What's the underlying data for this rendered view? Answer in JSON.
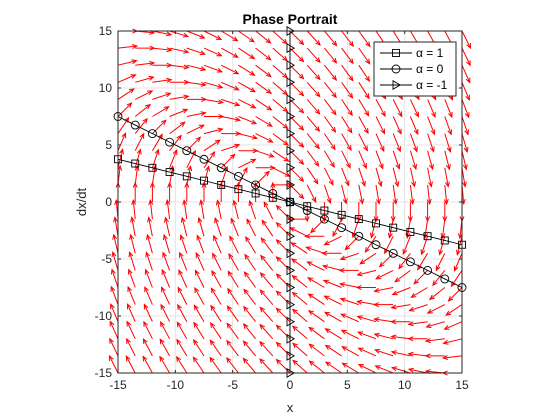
{
  "chart_data": {
    "type": "quiver_line",
    "title": "Phase Portrait",
    "xlabel": "x",
    "ylabel": "dx/dt",
    "xlim": [
      -15,
      15
    ],
    "ylim": [
      -15,
      15
    ],
    "x_ticks": [
      -15,
      -10,
      -5,
      0,
      5,
      10,
      15
    ],
    "y_ticks": [
      -15,
      -10,
      -5,
      0,
      5,
      10,
      15
    ],
    "x_tick_labels": [
      "-15",
      "-10",
      "-5",
      "0",
      "5",
      "10",
      "15"
    ],
    "y_tick_labels": [
      "-15",
      "-10",
      "-5",
      "0",
      "5",
      "10",
      "15"
    ],
    "grid": true,
    "legend_position": "top-right",
    "vector_field": {
      "color": "#ff0000",
      "grid_x": [
        -15,
        -13.5,
        -12,
        -10.5,
        -9,
        -7.5,
        -6,
        -4.5,
        -3,
        -1.5,
        0,
        1.5,
        3,
        4.5,
        6,
        7.5,
        9,
        10.5,
        12,
        13.5,
        15
      ],
      "grid_y": [
        -15,
        -13.5,
        -12,
        -10.5,
        -9,
        -7.5,
        -6,
        -4.5,
        -3,
        -1.5,
        0,
        1.5,
        3,
        4.5,
        6,
        7.5,
        9,
        10.5,
        12,
        13.5,
        15
      ]
    },
    "series": [
      {
        "name": "α = 1",
        "marker": "square",
        "x": [
          -15,
          -13.5,
          -12,
          -10.5,
          -9,
          -7.5,
          -6,
          -4.5,
          -3,
          -1.5,
          0,
          1.5,
          3,
          4.5,
          6,
          7.5,
          9,
          10.5,
          12,
          13.5,
          15
        ],
        "y": [
          3.75,
          3.375,
          3.0,
          2.625,
          2.25,
          1.875,
          1.5,
          1.125,
          0.75,
          0.375,
          0,
          -0.375,
          -0.75,
          -1.125,
          -1.5,
          -1.875,
          -2.25,
          -2.625,
          -3.0,
          -3.375,
          -3.75
        ]
      },
      {
        "name": "α = 0",
        "marker": "circle",
        "x": [
          -15,
          -13.5,
          -12,
          -10.5,
          -9,
          -7.5,
          -6,
          -4.5,
          -3,
          -1.5,
          0,
          1.5,
          3,
          4.5,
          6,
          7.5,
          9,
          10.5,
          12,
          13.5,
          15
        ],
        "y": [
          7.5,
          6.75,
          6.0,
          5.25,
          4.5,
          3.75,
          3.0,
          2.25,
          1.5,
          0.75,
          0,
          -0.75,
          -1.5,
          -2.25,
          -3.0,
          -3.75,
          -4.5,
          -5.25,
          -6.0,
          -6.75,
          -7.5
        ]
      },
      {
        "name": "α = -1",
        "marker": "triangle-right",
        "x": [
          0,
          0,
          0,
          0,
          0,
          0,
          0,
          0,
          0,
          0,
          0,
          0,
          0,
          0,
          0,
          0,
          0,
          0,
          0,
          0,
          0
        ],
        "y": [
          -15,
          -13.5,
          -12,
          -10.5,
          -9,
          -7.5,
          -6,
          -4.5,
          -3,
          -1.5,
          0,
          1.5,
          3,
          4.5,
          6,
          7.5,
          9,
          10.5,
          12,
          13.5,
          15
        ]
      }
    ]
  }
}
